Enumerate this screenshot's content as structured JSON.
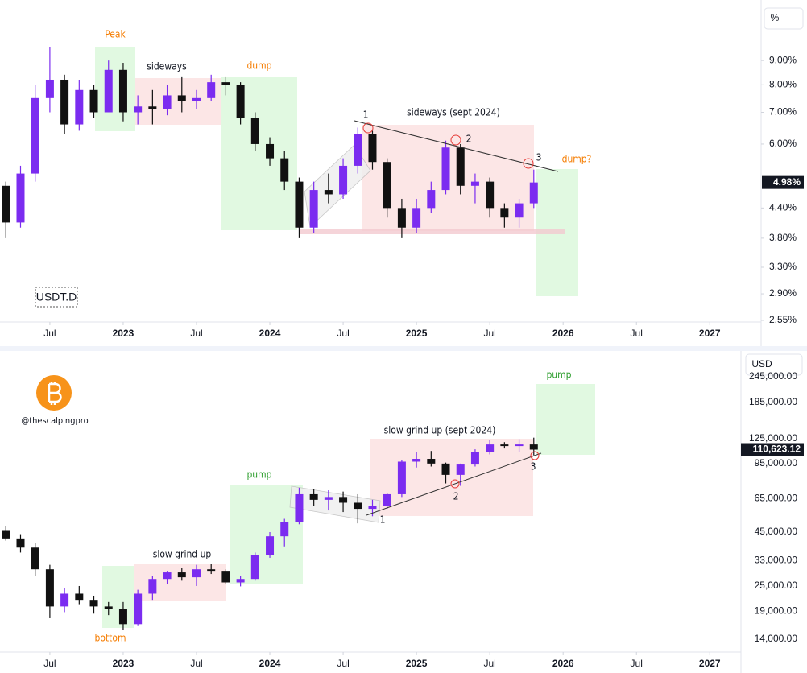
{
  "chart_data": [
    {
      "type": "candlestick",
      "title": "USDT.D",
      "unit": "%",
      "log_scale": true,
      "up_color": "#7b2cf0",
      "down_color": "#111111",
      "x": [
        2022.2,
        2022.3,
        2022.4,
        2022.5,
        2022.6,
        2022.7,
        2022.8,
        2022.9,
        2023.0,
        2023.1,
        2023.2,
        2023.3,
        2023.4,
        2023.5,
        2023.6,
        2023.7,
        2023.8,
        2023.9,
        2024.0,
        2024.1,
        2024.2,
        2024.3,
        2024.4,
        2024.5,
        2024.6,
        2024.7,
        2024.8,
        2024.9,
        2025.0,
        2025.1,
        2025.2,
        2025.3,
        2025.4,
        2025.5,
        2025.6,
        2025.7,
        2025.8
      ],
      "open": [
        4.9,
        4.1,
        5.2,
        7.5,
        8.2,
        6.6,
        7.8,
        7.0,
        8.6,
        7.0,
        7.2,
        7.1,
        7.6,
        7.4,
        7.5,
        8.1,
        8.0,
        6.8,
        6.0,
        5.6,
        5.0,
        4.0,
        4.8,
        4.7,
        5.4,
        6.3,
        5.5,
        4.4,
        4.0,
        4.4,
        4.8,
        5.9,
        4.9,
        5.0,
        4.4,
        4.2,
        4.5
      ],
      "high": [
        5.0,
        5.4,
        8.0,
        9.6,
        8.4,
        8.2,
        8.0,
        9.0,
        8.9,
        7.6,
        7.8,
        8.0,
        8.3,
        7.8,
        8.4,
        8.3,
        8.1,
        7.0,
        6.2,
        5.8,
        5.1,
        5.0,
        5.2,
        5.6,
        6.5,
        6.4,
        5.6,
        4.6,
        4.6,
        5.0,
        6.1,
        6.0,
        5.2,
        5.1,
        4.5,
        4.6,
        5.3
      ],
      "low": [
        3.8,
        4.0,
        5.0,
        7.0,
        6.3,
        6.4,
        6.8,
        7.0,
        6.7,
        6.6,
        6.6,
        6.9,
        7.0,
        7.1,
        7.4,
        7.6,
        6.6,
        5.8,
        5.4,
        4.8,
        3.8,
        3.9,
        4.5,
        4.6,
        5.2,
        5.3,
        4.2,
        3.8,
        3.9,
        4.3,
        4.7,
        4.7,
        4.5,
        4.2,
        4.0,
        4.0,
        4.4
      ],
      "close": [
        4.1,
        5.2,
        7.5,
        8.2,
        6.6,
        7.8,
        7.0,
        8.6,
        7.0,
        7.2,
        7.1,
        7.6,
        7.4,
        7.5,
        8.1,
        8.0,
        6.8,
        6.0,
        5.6,
        5.0,
        4.0,
        4.8,
        4.7,
        5.4,
        6.3,
        5.5,
        4.4,
        4.0,
        4.4,
        4.8,
        5.9,
        4.9,
        5.0,
        4.4,
        4.2,
        4.5,
        4.98
      ],
      "last_label": "4.98%",
      "xlim": [
        2022.16,
        2027.35
      ],
      "xticks": [
        {
          "value": 2022.5,
          "label": "Jul"
        },
        2023,
        {
          "value": 2023.5,
          "label": "Jul"
        },
        2024,
        {
          "value": 2024.5,
          "label": "Jul"
        },
        2025,
        {
          "value": 2025.5,
          "label": "Jul"
        },
        2026,
        {
          "value": 2026.5,
          "label": "Jul"
        },
        2027
      ],
      "ylim": [
        2.53,
        11.7
      ],
      "yticks": [
        {
          "value": 9,
          "label": "9.00%"
        },
        {
          "value": 8,
          "label": "8.00%"
        },
        {
          "value": 7,
          "label": "7.00%"
        },
        {
          "value": 6,
          "label": "6.00%"
        },
        {
          "value": 4.4,
          "label": "4.40%"
        },
        {
          "value": 3.8,
          "label": "3.80%"
        },
        {
          "value": 3.3,
          "label": "3.30%"
        },
        {
          "value": 2.9,
          "label": "2.90%"
        },
        {
          "value": 2.55,
          "label": "2.55%"
        }
      ],
      "annotations": [
        "Peak",
        "sideways",
        "dump",
        "1",
        "sideways (sept 2024)",
        "2",
        "3",
        "dump?"
      ]
    },
    {
      "type": "candlestick",
      "unit": "USD",
      "log_scale": true,
      "up_color": "#7b2cf0",
      "down_color": "#111111",
      "x": [
        2022.2,
        2022.3,
        2022.4,
        2022.5,
        2022.6,
        2022.7,
        2022.8,
        2022.9,
        2023.0,
        2023.1,
        2023.2,
        2023.3,
        2023.4,
        2023.5,
        2023.6,
        2023.7,
        2023.8,
        2023.9,
        2024.0,
        2024.1,
        2024.2,
        2024.3,
        2024.4,
        2024.5,
        2024.6,
        2024.7,
        2024.8,
        2024.9,
        2025.0,
        2025.1,
        2025.2,
        2025.3,
        2025.4,
        2025.5,
        2025.6,
        2025.7,
        2025.8
      ],
      "open": [
        46000,
        42000,
        38000,
        30000,
        20000,
        23000,
        21500,
        20000,
        19500,
        16500,
        23000,
        27000,
        29000,
        27500,
        30000,
        29500,
        26000,
        27000,
        35000,
        43000,
        50000,
        68000,
        64000,
        66000,
        62000,
        58000,
        60000,
        68000,
        97000,
        100000,
        95000,
        84000,
        94000,
        108000,
        117000,
        115000,
        117000
      ],
      "high": [
        48000,
        44000,
        40000,
        31500,
        24500,
        25000,
        22500,
        21000,
        21000,
        24000,
        28000,
        29500,
        30500,
        31500,
        31800,
        30000,
        28000,
        36000,
        45000,
        52000,
        73000,
        72000,
        71000,
        70000,
        68000,
        64000,
        69000,
        99000,
        108000,
        109000,
        96000,
        95000,
        111000,
        123000,
        120000,
        124000,
        126000
      ],
      "low": [
        41000,
        36000,
        28000,
        17600,
        18800,
        20500,
        18500,
        18200,
        15500,
        16300,
        21500,
        25500,
        26500,
        25000,
        28500,
        25500,
        24900,
        26500,
        34000,
        38500,
        49000,
        60000,
        57000,
        56000,
        49500,
        53500,
        58000,
        66000,
        91000,
        92000,
        76500,
        74500,
        92000,
        105000,
        112000,
        108000,
        104000
      ],
      "close": [
        42000,
        38000,
        30000,
        20000,
        23000,
        21500,
        20000,
        19500,
        16500,
        23000,
        27000,
        29000,
        27500,
        30000,
        29500,
        26000,
        27000,
        35000,
        43000,
        50000,
        68000,
        64000,
        66000,
        62000,
        58000,
        60000,
        68000,
        97000,
        100000,
        95000,
        84000,
        94000,
        108000,
        117000,
        115000,
        117000,
        110623.12
      ],
      "last_label": "110,623.12",
      "xlim": [
        2022.16,
        2027.35
      ],
      "xticks": [
        {
          "value": 2022.5,
          "label": "Jul"
        },
        2023,
        {
          "value": 2023.5,
          "label": "Jul"
        },
        2024,
        {
          "value": 2024.5,
          "label": "Jul"
        },
        2025,
        {
          "value": 2025.5,
          "label": "Jul"
        },
        2026,
        {
          "value": 2026.5,
          "label": "Jul"
        },
        2027
      ],
      "ylim": [
        12170,
        313000
      ],
      "yticks": [
        {
          "value": 245000,
          "label": "245,000.00"
        },
        {
          "value": 185000,
          "label": "185,000.00"
        },
        {
          "value": 125000,
          "label": "125,000.00"
        },
        {
          "value": 95000,
          "label": "95,000.00"
        },
        {
          "value": 65000,
          "label": "65,000.00"
        },
        {
          "value": 45000,
          "label": "45,000.00"
        },
        {
          "value": 33000,
          "label": "33,000.00"
        },
        {
          "value": 25000,
          "label": "25,000.00"
        },
        {
          "value": 19000,
          "label": "19,000.00"
        },
        {
          "value": 14000,
          "label": "14,000.00"
        }
      ],
      "annotations": [
        "@thescalpingpro",
        "pump",
        "slow grind up (sept 2024)",
        "3",
        "2",
        "1",
        "pump",
        "slow grind up",
        "bottom"
      ]
    }
  ]
}
